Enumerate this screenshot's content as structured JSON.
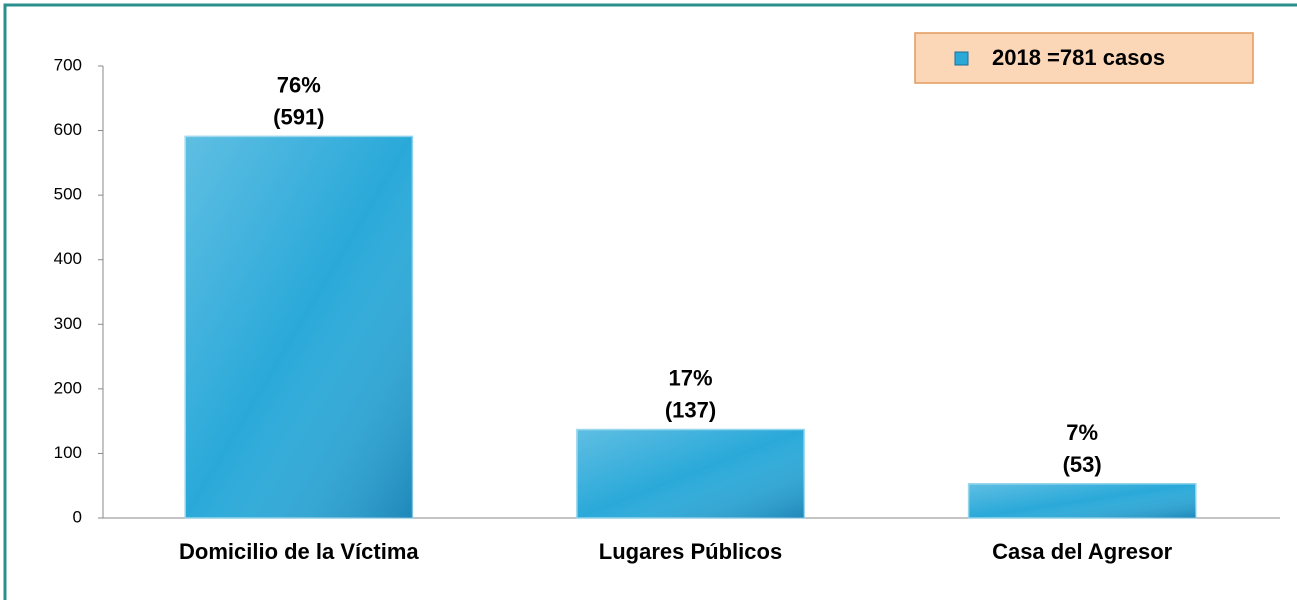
{
  "chart_data": {
    "type": "bar",
    "categories": [
      "Domicilio de la Víctima",
      "Lugares Públicos",
      "Casa del Agresor"
    ],
    "series": [
      {
        "name": "2018 =781 casos",
        "color": "#2aa9d9",
        "values": [
          591,
          137,
          53
        ],
        "value_labels": [
          "76%\n(591)",
          "17%\n(137)",
          "7%\n(53)"
        ]
      }
    ],
    "ylim": [
      0,
      700
    ],
    "yticks": [
      0,
      100,
      200,
      300,
      400,
      500,
      600,
      700
    ],
    "grid": false,
    "legend": "top-right"
  }
}
